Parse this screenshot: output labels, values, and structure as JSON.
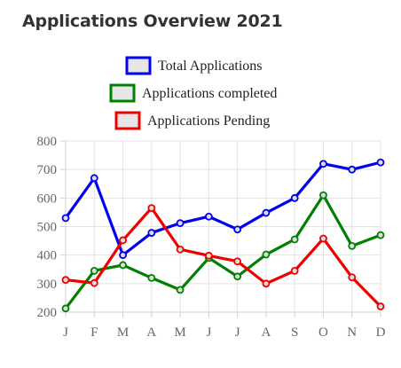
{
  "page": {
    "title": "Applications Overview 2021"
  },
  "chart_data": {
    "type": "line",
    "title": "Applications Overview 2021",
    "xlabel": "",
    "ylabel": "",
    "categories": [
      "J",
      "F",
      "M",
      "A",
      "M",
      "J",
      "J",
      "A",
      "S",
      "O",
      "N",
      "D"
    ],
    "ylim": [
      200,
      800
    ],
    "yticks": [
      200,
      300,
      400,
      500,
      600,
      700,
      800
    ],
    "grid": true,
    "legend_position": "top",
    "series": [
      {
        "name": "Total Applications",
        "color": "#0000ee",
        "values": [
          530,
          670,
          400,
          478,
          512,
          535,
          490,
          548,
          600,
          720,
          700,
          725
        ]
      },
      {
        "name": "Applications completed",
        "color": "#008000",
        "values": [
          213,
          345,
          365,
          320,
          278,
          390,
          325,
          402,
          455,
          610,
          432,
          470
        ]
      },
      {
        "name": "Applications Pending",
        "color": "#ee0000",
        "values": [
          313,
          302,
          452,
          565,
          420,
          398,
          378,
          300,
          345,
          458,
          322,
          220
        ]
      }
    ]
  }
}
